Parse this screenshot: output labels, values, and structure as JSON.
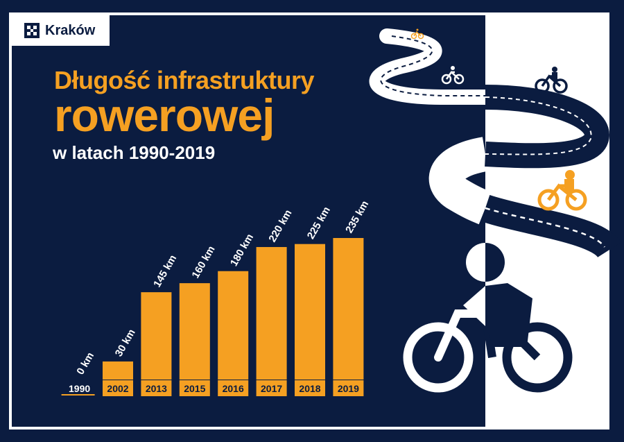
{
  "logo": {
    "text": "Kraków"
  },
  "colors": {
    "background": "#0b1c40",
    "accent": "#f5a022",
    "white": "#ffffff"
  },
  "chart_data": {
    "type": "bar",
    "title": "Długość infrastruktury rowerowej",
    "title_line1": "Długość infrastruktury",
    "title_line2": "rowerowej",
    "subtitle": "w latach 1990-2019",
    "categories": [
      "1990",
      "2002",
      "2013",
      "2015",
      "2016",
      "2017",
      "2018",
      "2019"
    ],
    "values": [
      0,
      30,
      145,
      160,
      180,
      220,
      225,
      235
    ],
    "value_labels": [
      "0 km",
      "30 km",
      "145 km",
      "160 km",
      "180 km",
      "220 km",
      "225 km",
      "235 km"
    ],
    "unit": "km",
    "xlabel": "",
    "ylabel": "",
    "ylim": [
      0,
      235
    ],
    "grid": false,
    "legend": "none"
  },
  "illustration": {
    "icons": [
      "bicycle-road-icon",
      "cyclist-icon",
      "large-cyclist-icon"
    ]
  }
}
